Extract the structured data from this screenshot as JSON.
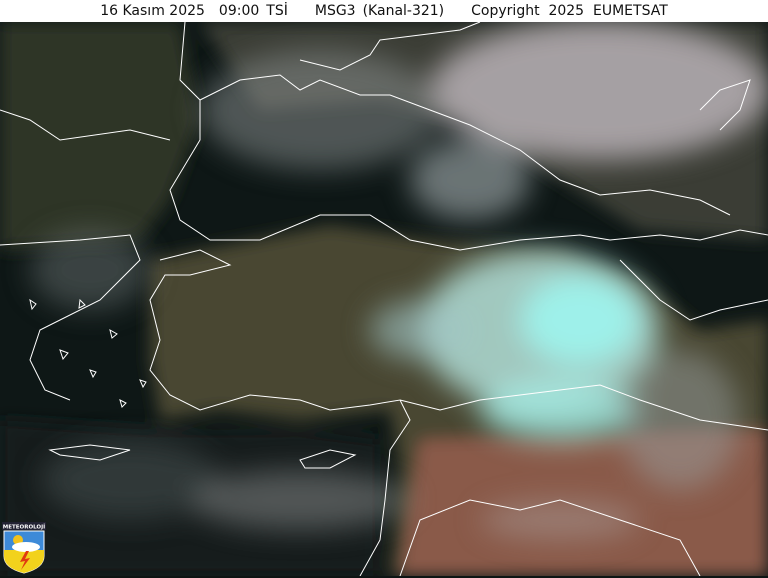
{
  "header": {
    "date": "16 Kasım 2025",
    "time": "09:00",
    "timezone": "TSİ",
    "satellite": "MSG3",
    "channel": "(Kanal-321)",
    "copyright": "Copyright  2025  EUMETSAT"
  },
  "logo": {
    "text": "METEOROLOJİ"
  },
  "colors": {
    "coastline": "#ffffff",
    "cloud_ice": "#9ff5ee",
    "cloud": "#d8d4d6",
    "land": "#4a4a2e",
    "sea": "#0b1516",
    "desert": "#8a5a48"
  }
}
